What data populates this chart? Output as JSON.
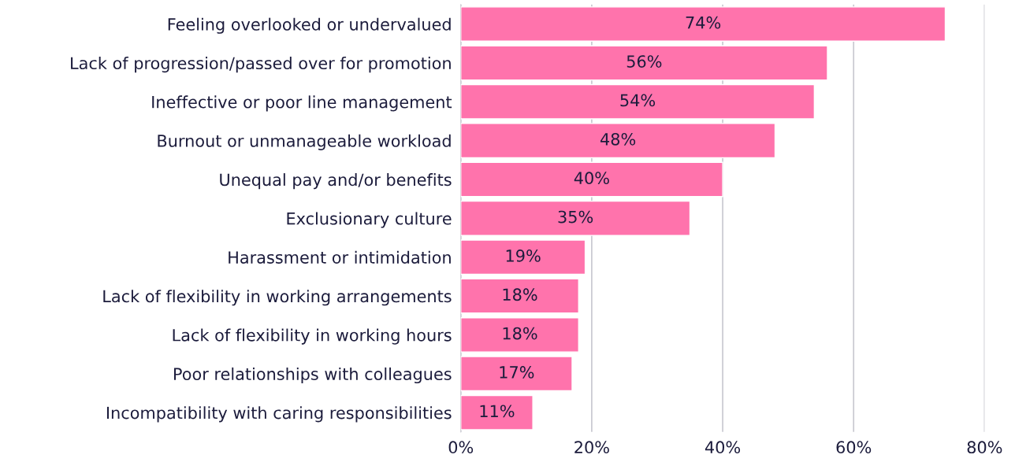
{
  "chart_data": {
    "type": "bar",
    "orientation": "horizontal",
    "categories": [
      "Feeling overlooked or undervalued",
      "Lack of progression/passed over for promotion",
      "Ineffective or poor line management",
      "Burnout or unmanageable workload",
      "Unequal pay and/or benefits",
      "Exclusionary culture",
      "Harassment or intimidation",
      "Lack of flexibility in working arrangements",
      "Lack of flexibility in working hours",
      "Poor relationships with colleagues",
      "Incompatibility with caring responsibilities"
    ],
    "values": [
      74,
      56,
      54,
      48,
      40,
      35,
      19,
      18,
      18,
      17,
      11
    ],
    "value_labels": [
      "74%",
      "56%",
      "54%",
      "48%",
      "40%",
      "35%",
      "19%",
      "18%",
      "18%",
      "17%",
      "11%"
    ],
    "color": "#ff73ac",
    "xlim": [
      0,
      80
    ],
    "xticks": [
      {
        "value": 0,
        "label": "0%"
      },
      {
        "value": 20,
        "label": "20%"
      },
      {
        "value": 40,
        "label": "40%"
      },
      {
        "value": 60,
        "label": "60%"
      },
      {
        "value": 80,
        "label": "80%"
      }
    ],
    "grid": "x",
    "legend": false
  }
}
